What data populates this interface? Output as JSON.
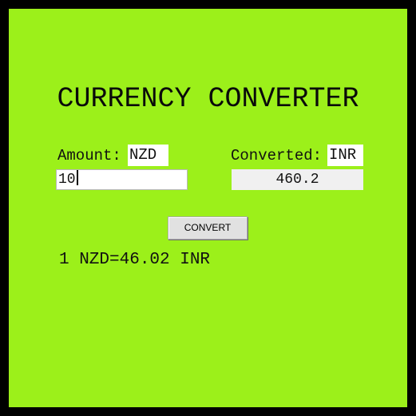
{
  "app": {
    "title": "CURRENCY CONVERTER"
  },
  "from": {
    "label": "Amount:",
    "currency": "NZD",
    "amount_value": "10"
  },
  "to": {
    "label": "Converted:",
    "currency": "INR",
    "converted_value": "460.2"
  },
  "convert_button": {
    "label": "CONVERT"
  },
  "rate_text": "1 NZD=46.02 INR",
  "colors": {
    "background": "#9cf01a",
    "frame": "#000000",
    "button": "#e1e1e1",
    "result_field": "#f0f0f0"
  }
}
